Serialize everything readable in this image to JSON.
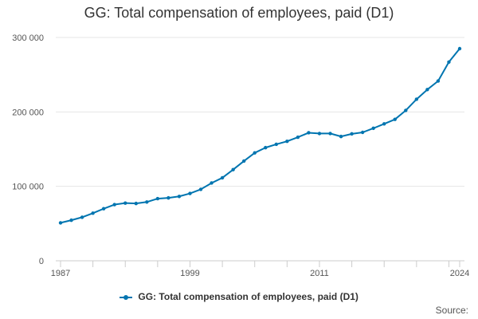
{
  "chart_data": {
    "type": "line",
    "title": "GG: Total compensation of employees, paid (D1)",
    "xlabel": "",
    "ylabel": "",
    "x_range": [
      1987,
      2024
    ],
    "x_tick_labels": [
      "1987",
      "1999",
      "2011",
      "2024"
    ],
    "ylim": [
      0,
      300000
    ],
    "y_ticks": [
      0,
      100000,
      200000,
      300000
    ],
    "y_tick_labels": [
      "0",
      "100 000",
      "200 000",
      "300 000"
    ],
    "grid": "horizontal",
    "legend_position": "bottom",
    "colors": {
      "series": "#0075b0",
      "grid": "#e6e6e6",
      "axis": "#cccccc"
    },
    "x": [
      1987,
      1988,
      1989,
      1990,
      1991,
      1992,
      1993,
      1994,
      1995,
      1996,
      1997,
      1998,
      1999,
      2000,
      2001,
      2002,
      2003,
      2004,
      2005,
      2006,
      2007,
      2008,
      2009,
      2010,
      2011,
      2012,
      2013,
      2014,
      2015,
      2016,
      2017,
      2018,
      2019,
      2020,
      2021,
      2022,
      2023,
      2024
    ],
    "series": [
      {
        "name": "GG: Total compensation of employees, paid (D1)",
        "values": [
          51000,
          54500,
          58500,
          64000,
          70000,
          75500,
          77500,
          77000,
          79000,
          83500,
          84500,
          86500,
          90500,
          96000,
          104500,
          111500,
          122500,
          134000,
          145000,
          152000,
          156500,
          160500,
          166000,
          172000,
          171000,
          171000,
          167000,
          170500,
          172500,
          178000,
          184000,
          190000,
          202000,
          217000,
          230000,
          241500,
          267000,
          285000
        ]
      }
    ]
  },
  "source_label": "Source:"
}
